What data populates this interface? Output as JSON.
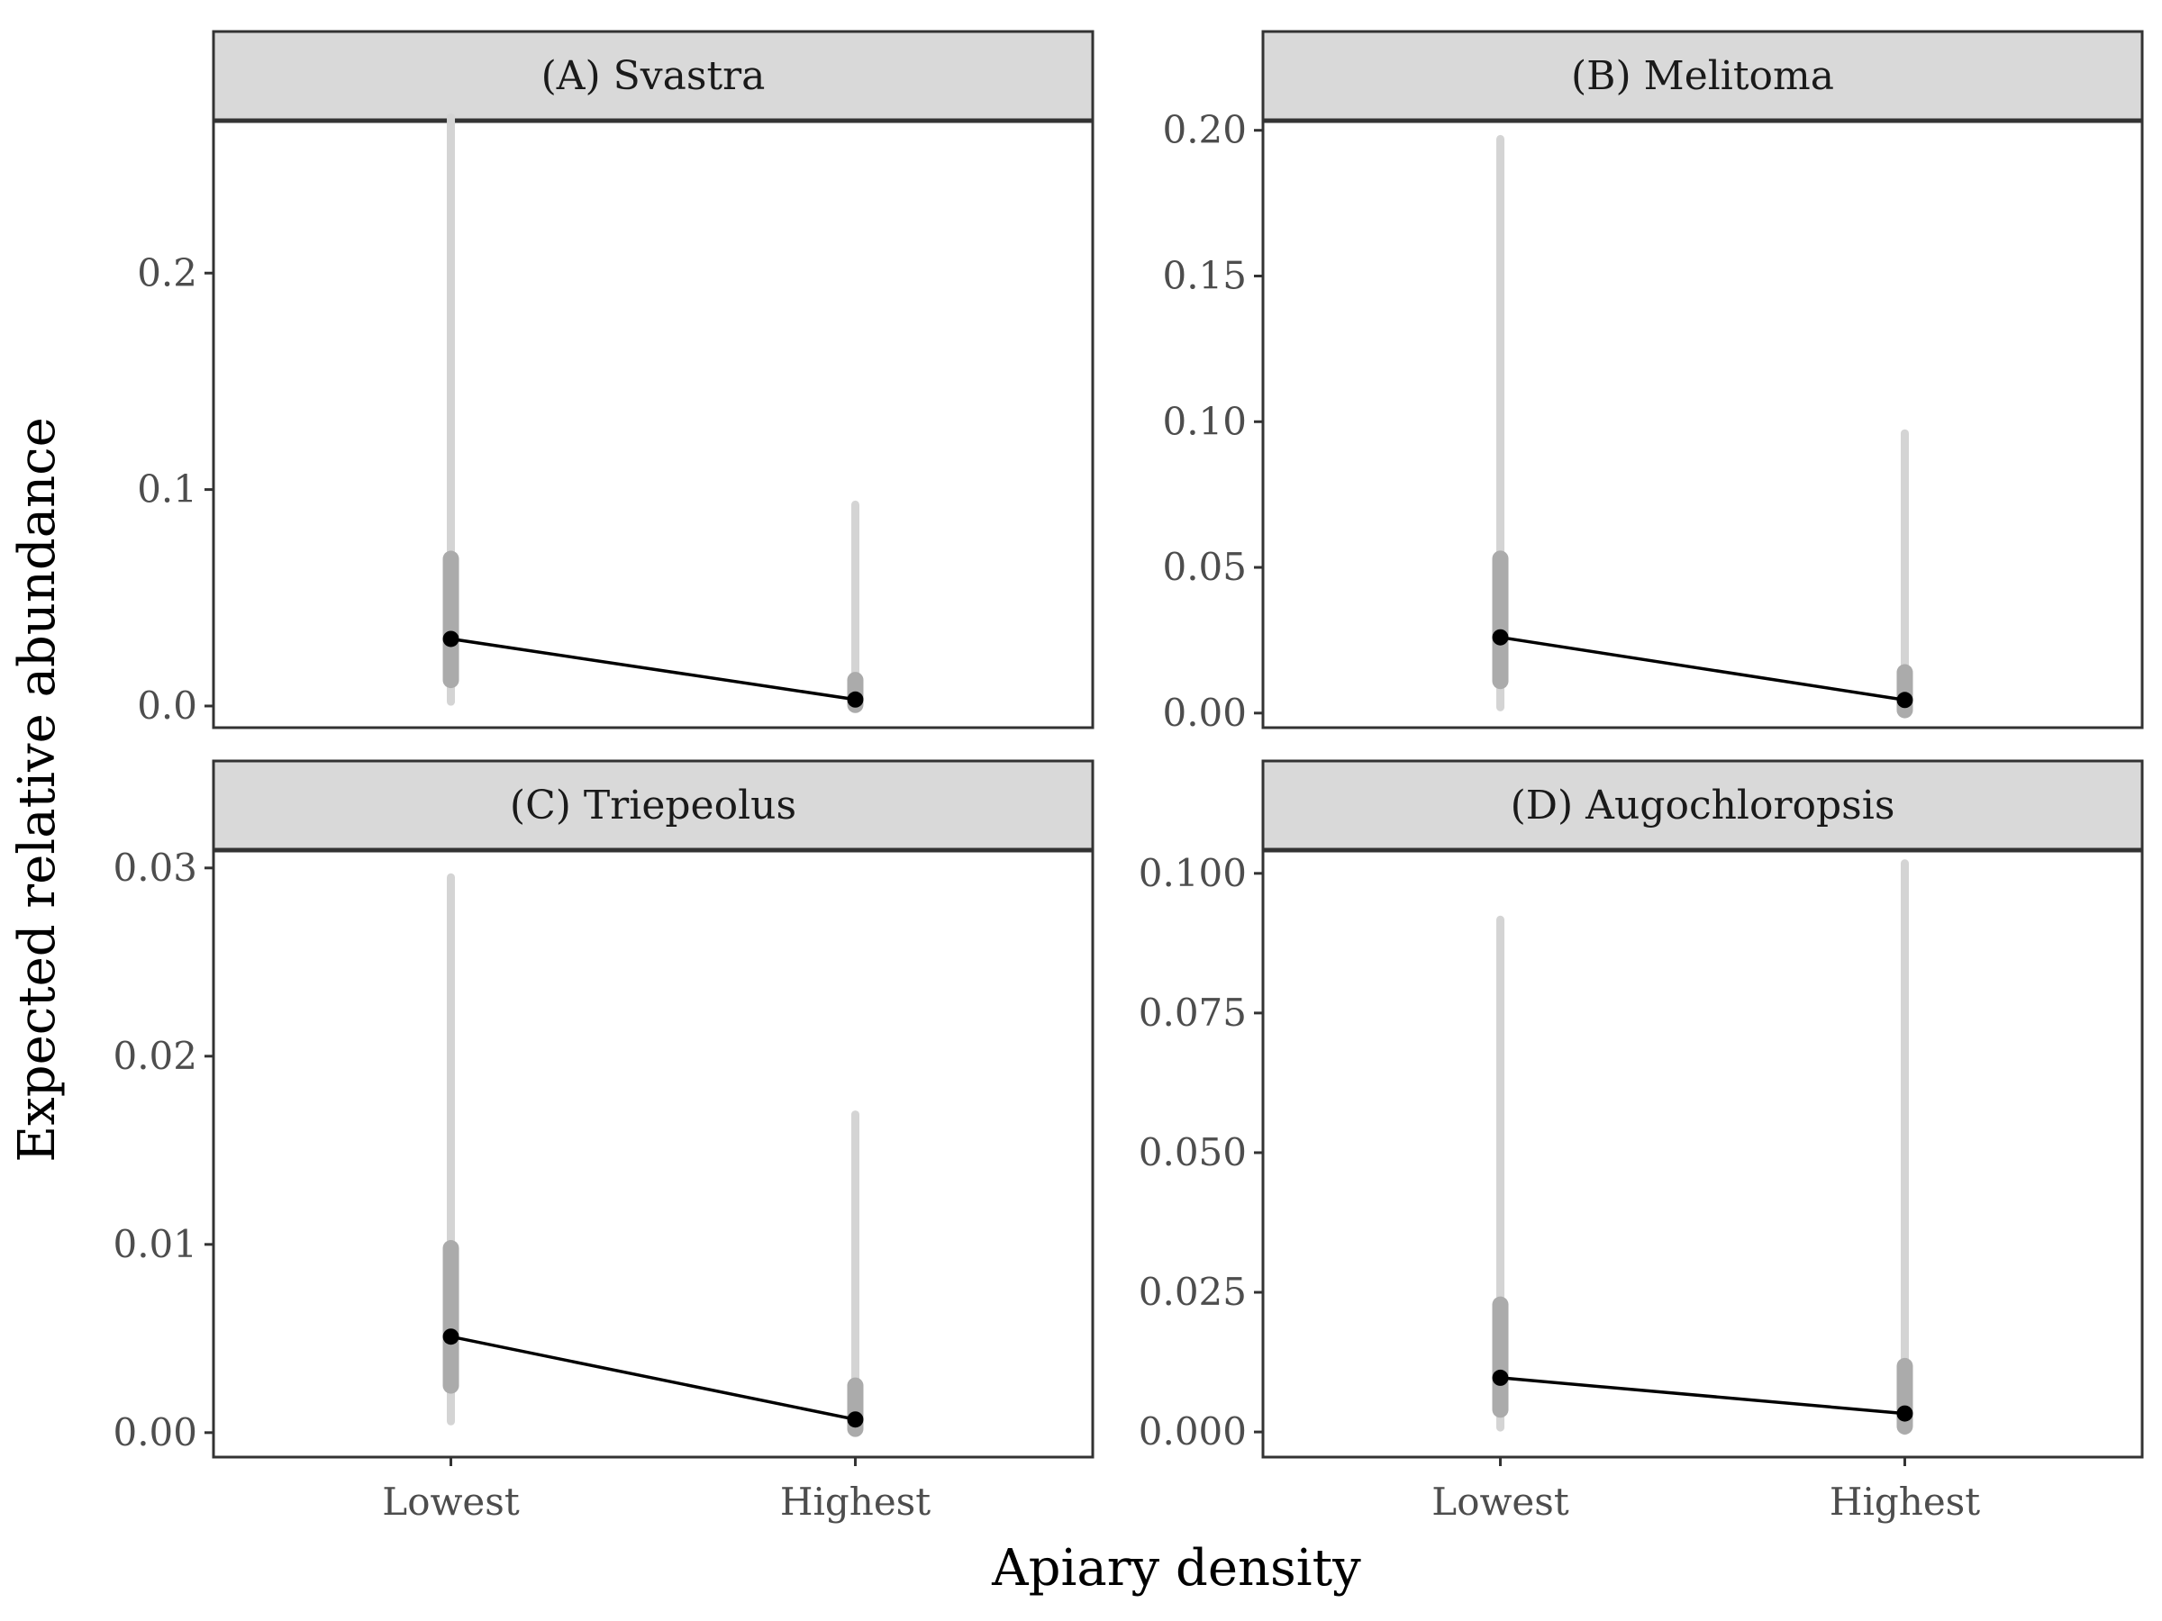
{
  "chart_data": {
    "type": "line",
    "xlabel": "Apiary density",
    "ylabel": "Expected relative abundance",
    "categories": [
      "Lowest",
      "Highest"
    ],
    "panels": [
      {
        "title": "(A) Svastra",
        "ylim": [
          -0.01,
          0.27
        ],
        "yticks": [
          0.0,
          0.1,
          0.2
        ],
        "ytick_labels": [
          "0.0",
          "0.1",
          "0.2"
        ],
        "estimates": [
          0.031,
          0.003
        ],
        "ci_inner": [
          [
            0.012,
            0.068
          ],
          [
            0.0005,
            0.012
          ]
        ],
        "ci_outer": [
          [
            0.002,
            0.272
          ],
          [
            0.0001,
            0.093
          ]
        ]
      },
      {
        "title": "(B) Melitoma",
        "ylim": [
          -0.005,
          0.203
        ],
        "yticks": [
          0.0,
          0.05,
          0.1,
          0.15,
          0.2
        ],
        "ytick_labels": [
          "0.00",
          "0.05",
          "0.10",
          "0.15",
          "0.20"
        ],
        "estimates": [
          0.026,
          0.0045
        ],
        "ci_inner": [
          [
            0.011,
            0.053
          ],
          [
            0.001,
            0.014
          ]
        ],
        "ci_outer": [
          [
            0.002,
            0.197
          ],
          [
            0.0002,
            0.096
          ]
        ]
      },
      {
        "title": "(C) Triepeolus",
        "ylim": [
          -0.0013,
          0.0309
        ],
        "yticks": [
          0.0,
          0.01,
          0.02,
          0.03
        ],
        "ytick_labels": [
          "0.00",
          "0.01",
          "0.02",
          "0.03"
        ],
        "estimates": [
          0.0051,
          0.0007
        ],
        "ci_inner": [
          [
            0.0025,
            0.0098
          ],
          [
            0.0002,
            0.0025
          ]
        ],
        "ci_outer": [
          [
            0.0006,
            0.0295
          ],
          [
            0.0001,
            0.0169
          ]
        ]
      },
      {
        "title": "(D) Augochloropsis",
        "ylim": [
          -0.0045,
          0.104
        ],
        "yticks": [
          0.0,
          0.025,
          0.05,
          0.075,
          0.1
        ],
        "ytick_labels": [
          "0.000",
          "0.025",
          "0.050",
          "0.075",
          "0.100"
        ],
        "estimates": [
          0.0097,
          0.0033
        ],
        "ci_inner": [
          [
            0.004,
            0.0228
          ],
          [
            0.001,
            0.0118
          ]
        ],
        "ci_outer": [
          [
            0.0008,
            0.0917
          ],
          [
            0.0002,
            0.1018
          ]
        ]
      }
    ]
  }
}
